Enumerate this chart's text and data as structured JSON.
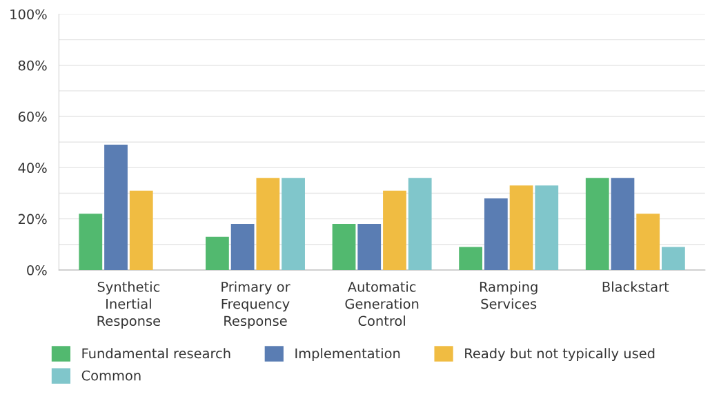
{
  "chart_data": {
    "type": "bar",
    "categories": [
      "Synthetic\nInertial\nResponse",
      "Primary or\nFrequency\nResponse",
      "Automatic\nGeneration\nControl",
      "Ramping\nServices",
      "Blackstart"
    ],
    "series": [
      {
        "name": "Fundamental research",
        "color": "#52b96f",
        "values": [
          22,
          13,
          18,
          9,
          36
        ]
      },
      {
        "name": "Implementation",
        "color": "#5a7db3",
        "values": [
          49,
          18,
          18,
          28,
          36
        ]
      },
      {
        "name": "Ready but not typically used",
        "color": "#f0bc42",
        "values": [
          31,
          36,
          31,
          33,
          22
        ]
      },
      {
        "name": "Common",
        "color": "#80c6cb",
        "values": [
          0,
          36,
          36,
          33,
          9
        ]
      }
    ],
    "ylim": [
      0,
      100
    ],
    "yticks": [
      {
        "value": 0,
        "label": "0%"
      },
      {
        "value": 10,
        "label": null
      },
      {
        "value": 20,
        "label": "20%"
      },
      {
        "value": 30,
        "label": null
      },
      {
        "value": 40,
        "label": "40%"
      },
      {
        "value": 50,
        "label": null
      },
      {
        "value": 60,
        "label": "60%"
      },
      {
        "value": 70,
        "label": null
      },
      {
        "value": 80,
        "label": "80%"
      },
      {
        "value": 90,
        "label": null
      },
      {
        "value": 100,
        "label": "100%"
      }
    ],
    "grid": "y",
    "legend": "bottom"
  }
}
